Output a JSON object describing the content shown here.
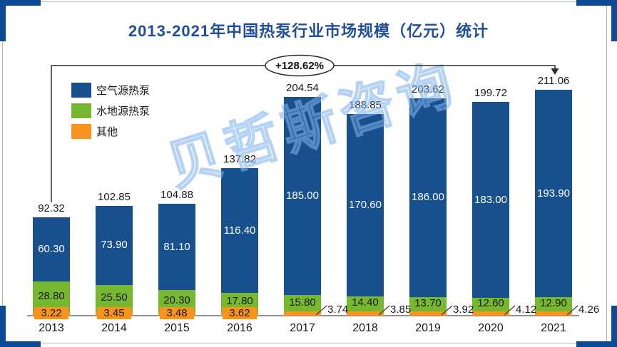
{
  "title": "2013-2021年中国热泵行业市场规模（亿元）统计",
  "watermark": "贝哲斯咨询",
  "annotation": {
    "growth_label": "+128.62%"
  },
  "legend": [
    {
      "label": "空气源热泵",
      "color": "#17508c"
    },
    {
      "label": "水地源热泵",
      "color": "#76b82f"
    },
    {
      "label": "其他",
      "color": "#f7941e"
    }
  ],
  "colors": {
    "air_source_blue": "#17508c",
    "water_ground_green": "#76b82f",
    "other_orange": "#f7941e",
    "title_blue": "#1e4e9c",
    "corner_blue": "#0d4b98",
    "axis_gray": "#919191"
  },
  "chart_data": {
    "type": "bar",
    "stacked": true,
    "title": "2013-2021年中国热泵行业市场规模（亿元）统计",
    "unit": "亿元",
    "categories": [
      "2013",
      "2014",
      "2015",
      "2016",
      "2017",
      "2018",
      "2019",
      "2020",
      "2021"
    ],
    "series": [
      {
        "name": "空气源热泵",
        "color": "#17508c",
        "values": [
          60.3,
          73.9,
          81.1,
          116.4,
          185.0,
          170.6,
          186.0,
          183.0,
          193.9
        ]
      },
      {
        "name": "水地源热泵",
        "color": "#76b82f",
        "values": [
          28.8,
          25.5,
          20.3,
          17.8,
          15.8,
          14.4,
          13.7,
          12.6,
          12.9
        ]
      },
      {
        "name": "其他",
        "color": "#f7941e",
        "values": [
          3.22,
          3.45,
          3.48,
          3.62,
          3.74,
          3.85,
          3.92,
          4.12,
          4.26
        ]
      }
    ],
    "totals": [
      92.32,
      102.85,
      104.88,
      137.82,
      204.54,
      188.85,
      203.62,
      199.72,
      211.06
    ],
    "annotations": [
      {
        "text": "+128.62%",
        "from": "2013",
        "to": "2021"
      }
    ],
    "ylim": [
      0,
      235
    ],
    "grid": false,
    "legend_position": "upper-left"
  }
}
